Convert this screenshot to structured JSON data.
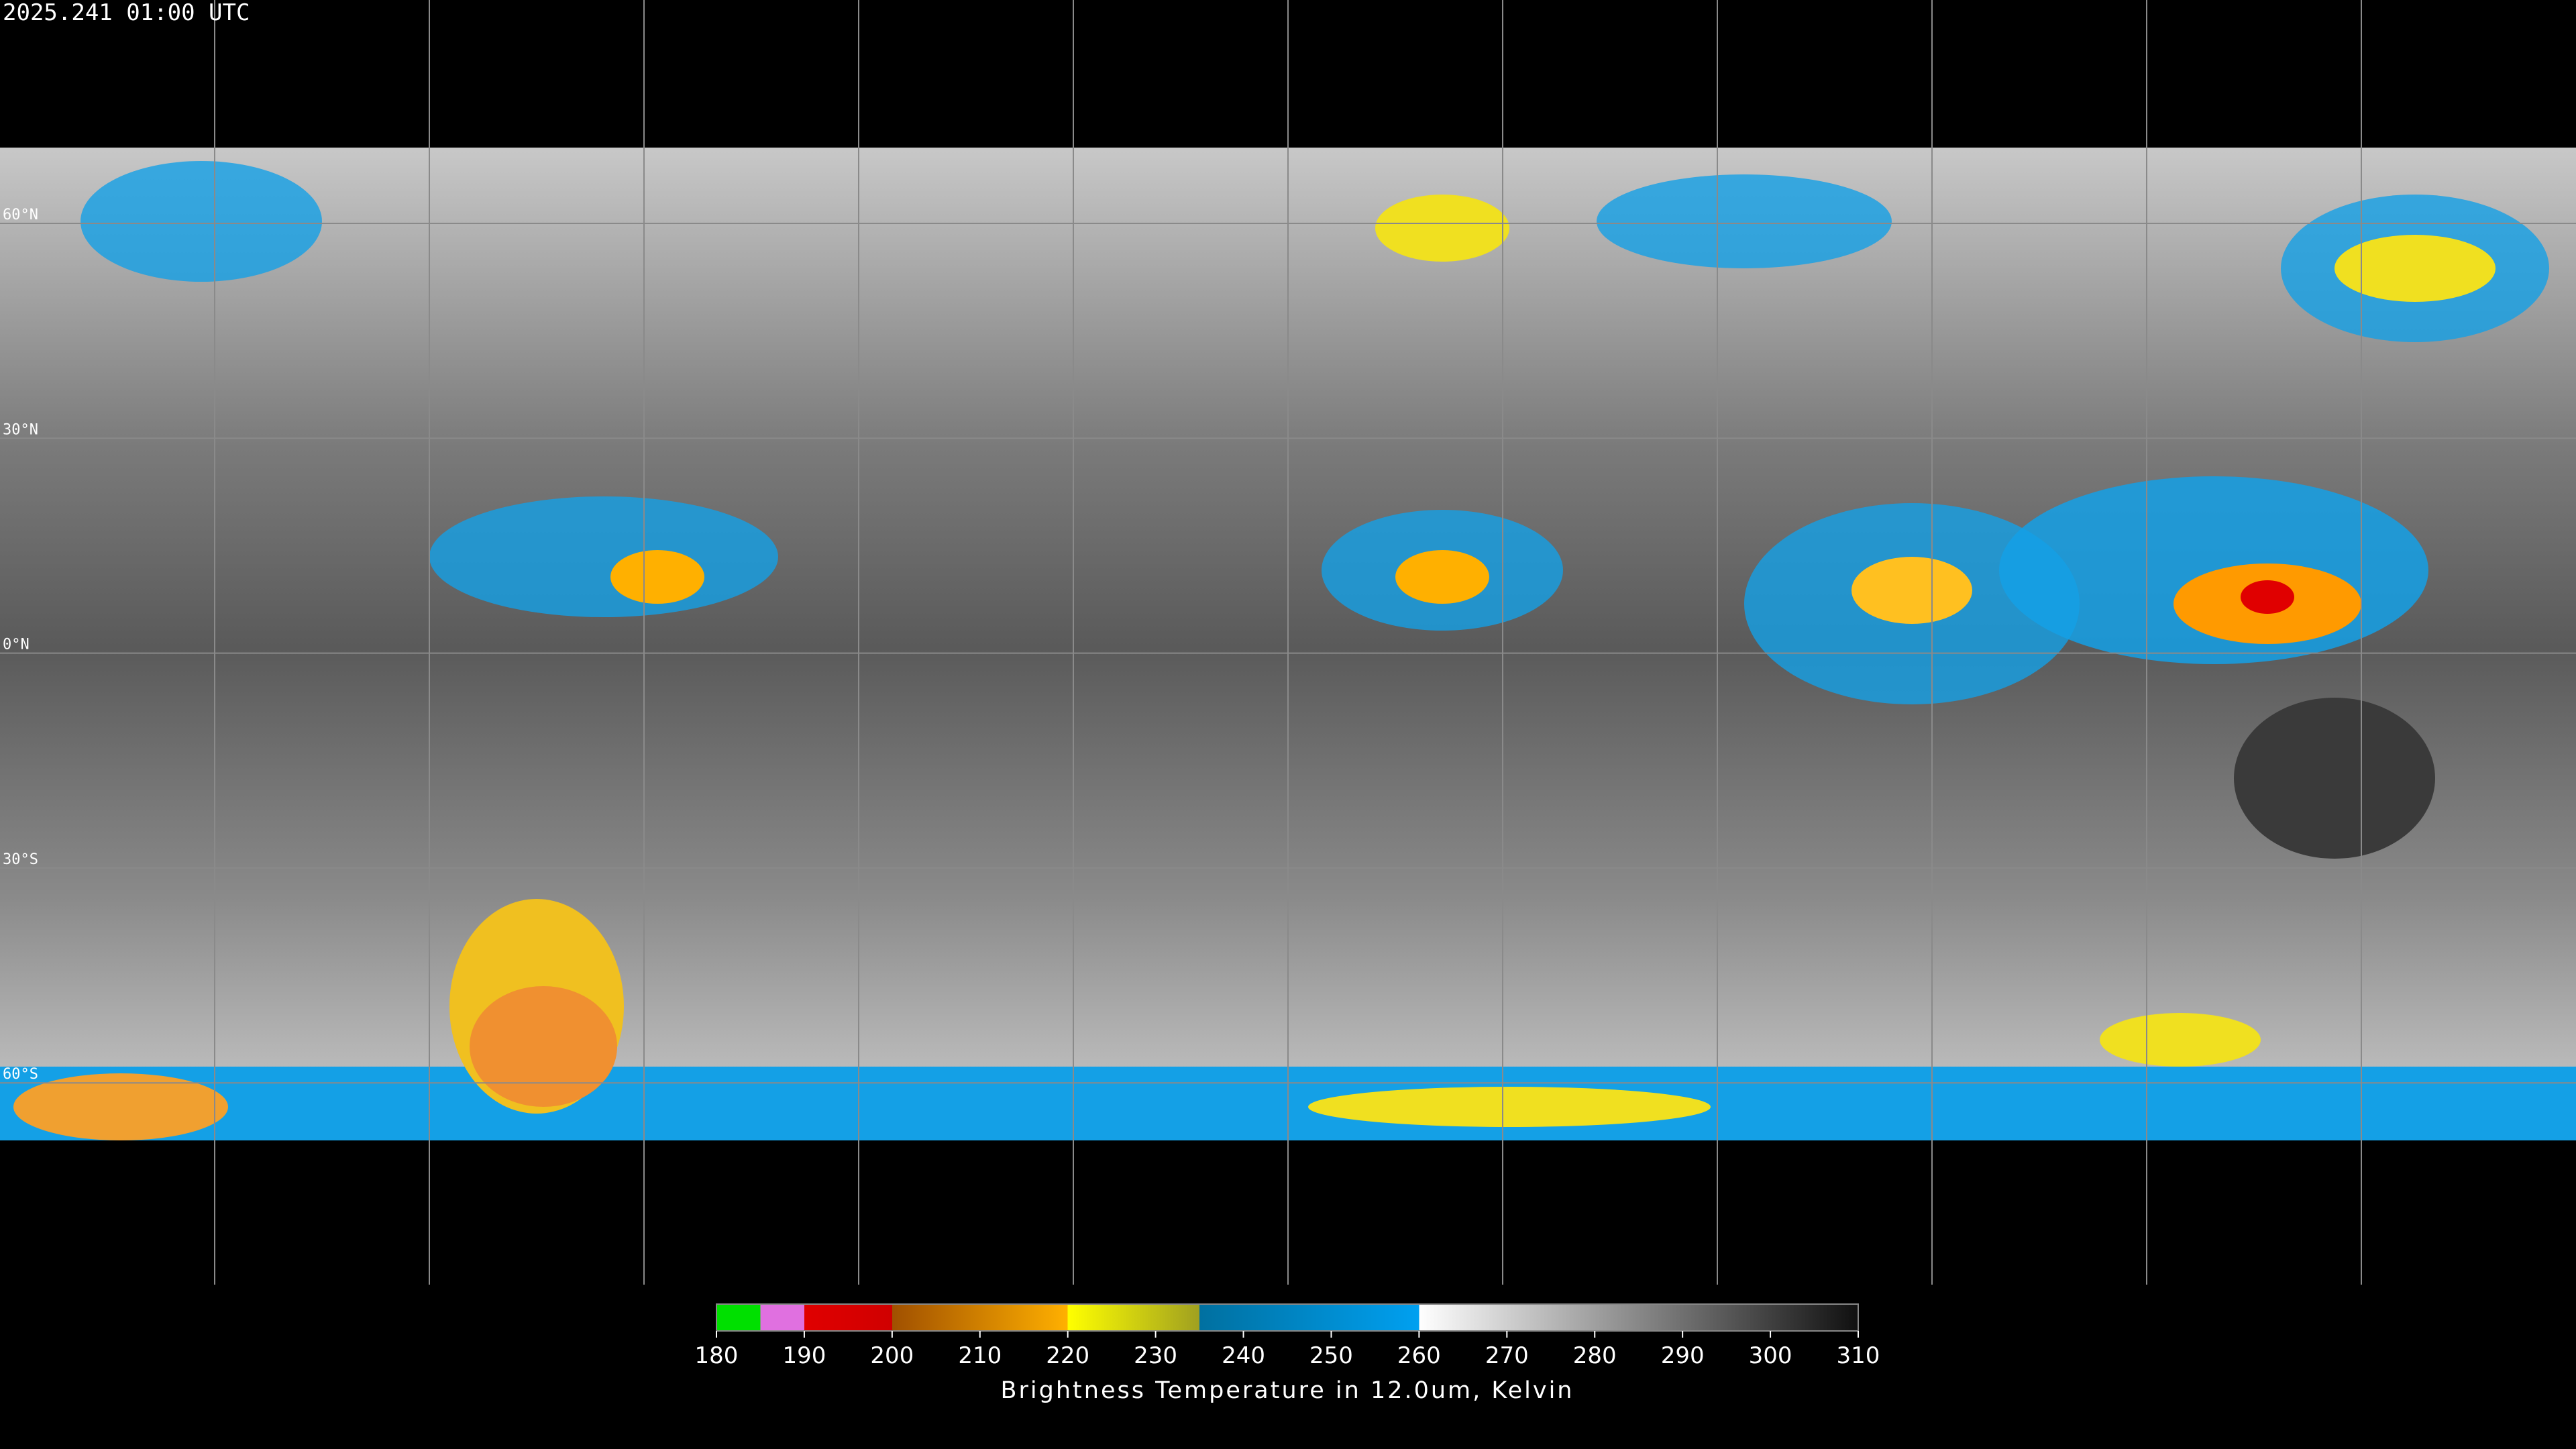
{
  "header": {
    "timestamp": "2025.241 01:00 UTC"
  },
  "map": {
    "latitude_labels": [
      "60°N",
      "30°N",
      "0°N",
      "30°S",
      "60°S"
    ]
  },
  "colorbar": {
    "ticks": [
      180,
      190,
      200,
      210,
      220,
      230,
      240,
      250,
      260,
      270,
      280,
      290,
      300,
      310
    ],
    "label": "Brightness Temperature in 12.0um, Kelvin"
  }
}
